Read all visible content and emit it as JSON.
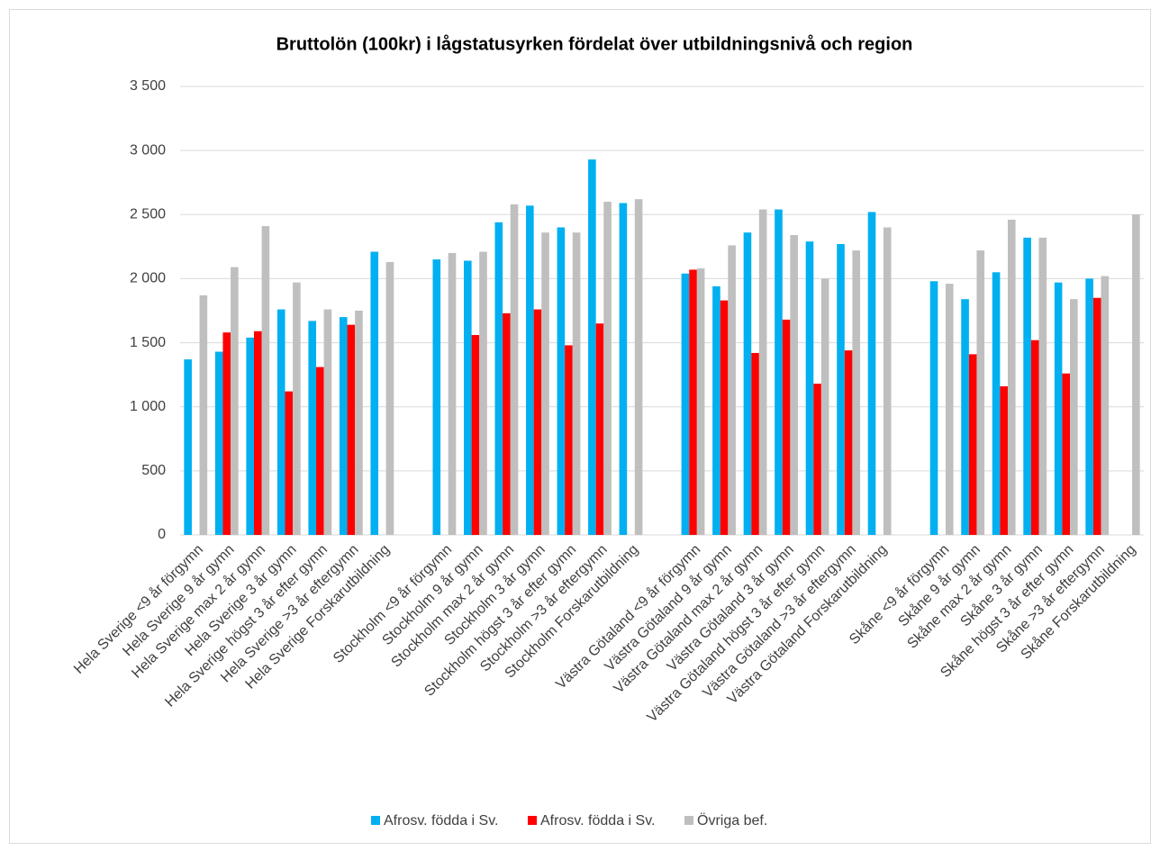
{
  "chart_data": {
    "type": "bar",
    "title": "Bruttolön (100kr) i lågstatusyrken fördelat över utbildningsnivå och region",
    "categories": [
      "Hela Sverige <9 år förgymn",
      "Hela Sverige 9 år gymn",
      "Hela Sverige max 2 år gymn",
      "Hela Sverige 3 år gymn",
      "Hela Sverige högst 3 år efter gymn",
      "Hela Sverige >3 år eftergymn",
      "Hela Sverige Forskarutbildning",
      null,
      "Stockholm <9 år förgymn",
      "Stockholm 9 år gymn",
      "Stockholm max 2 år gymn",
      "Stockholm 3 år gymn",
      "Stockholm högst 3 år efter gymn",
      "Stockholm >3 år eftergymn",
      "Stockholm Forskarutbildning",
      null,
      "Västra Götaland <9 år förgymn",
      "Västra Götaland 9 år gymn",
      "Västra Götaland max 2 år gymn",
      "Västra Götaland 3 år gymn",
      "Västra Götaland högst 3 år efter gymn",
      "Västra Götaland >3 år eftergymn",
      "Västra Götaland Forskarutbildning",
      null,
      "Skåne <9 år förgymn",
      "Skåne 9 år gymn",
      "Skåne max 2 år gymn",
      "Skåne 3 år gymn",
      "Skåne högst 3 år efter gymn",
      "Skåne >3 år eftergymn",
      "Skåne Forskarutbildning"
    ],
    "series": [
      {
        "name": "Afrosv. födda i Sv.",
        "color": "#00b0f0",
        "values": [
          1370,
          1430,
          1540,
          1760,
          1670,
          1700,
          2210,
          null,
          2150,
          2140,
          2440,
          2570,
          2400,
          2930,
          2590,
          null,
          2040,
          1940,
          2360,
          2540,
          2290,
          2270,
          2520,
          null,
          1980,
          1840,
          2050,
          2320,
          1970,
          2000,
          null
        ]
      },
      {
        "name": "Afrosv. födda i Sv.",
        "color": "#ff0000",
        "values": [
          null,
          1580,
          1590,
          1120,
          1310,
          1640,
          null,
          null,
          null,
          1560,
          1730,
          1760,
          1480,
          1650,
          null,
          null,
          2070,
          1830,
          1420,
          1680,
          1180,
          1440,
          null,
          null,
          null,
          1410,
          1160,
          1520,
          1260,
          1850,
          null
        ]
      },
      {
        "name": "Övriga bef.",
        "color": "#bfbfbf",
        "values": [
          1870,
          2090,
          2410,
          1970,
          1760,
          1750,
          2130,
          null,
          2200,
          2210,
          2580,
          2360,
          2360,
          2600,
          2620,
          null,
          2080,
          2260,
          2540,
          2340,
          2000,
          2220,
          2400,
          null,
          1960,
          2220,
          2460,
          2320,
          1840,
          2020,
          2500
        ]
      }
    ],
    "ylim": [
      0,
      3500
    ],
    "yticks": [
      0,
      500,
      {
        "value": 1000,
        "label": "1 000"
      },
      {
        "value": 1500,
        "label": "1 500"
      },
      {
        "value": 2000,
        "label": "2 000"
      },
      {
        "value": 2500,
        "label": "2 500"
      },
      {
        "value": 3000,
        "label": "3 000"
      },
      {
        "value": 3500,
        "label": "3 500"
      }
    ],
    "grid": true,
    "legend": "bottom"
  }
}
